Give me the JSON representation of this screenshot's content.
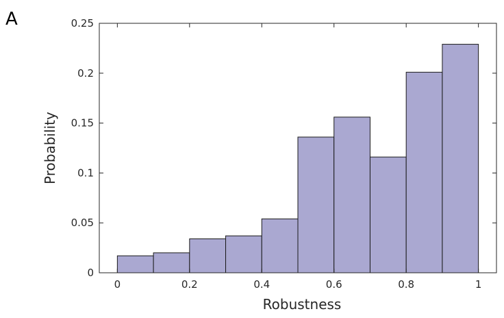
{
  "panel_label": "A",
  "chart_data": {
    "type": "bar",
    "title": "",
    "xlabel": "Robustness",
    "ylabel": "Probability",
    "bin_edges": [
      0,
      0.1,
      0.2,
      0.3,
      0.4,
      0.5,
      0.6,
      0.7,
      0.8,
      0.9,
      1.0
    ],
    "values": [
      0.017,
      0.02,
      0.034,
      0.037,
      0.054,
      0.136,
      0.156,
      0.116,
      0.201,
      0.229
    ],
    "xlim": [
      -0.05,
      1.05
    ],
    "ylim": [
      0,
      0.25
    ],
    "xticks": [
      0,
      0.2,
      0.4,
      0.6,
      0.8,
      1
    ],
    "xtick_labels": [
      "0",
      "0.2",
      "0.4",
      "0.6",
      "0.8",
      "1"
    ],
    "yticks": [
      0,
      0.05,
      0.1,
      0.15,
      0.2,
      0.25
    ],
    "ytick_labels": [
      "0",
      "0.05",
      "0.1",
      "0.15",
      "0.2",
      "0.25"
    ],
    "bar_color": "#aaa8d1",
    "edge_color": "#1a1a1a",
    "grid": false,
    "legend": "none"
  }
}
